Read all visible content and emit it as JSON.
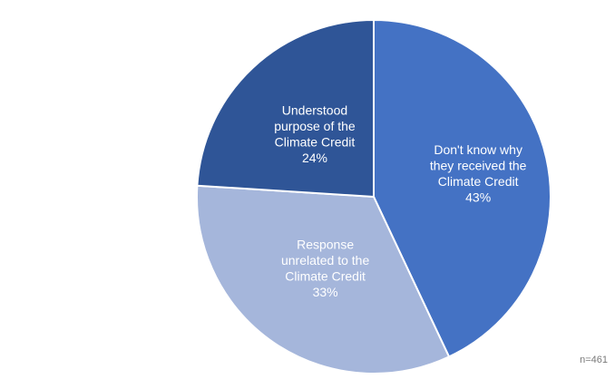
{
  "chart_data": {
    "type": "pie",
    "start_angle_deg": 0,
    "direction": "clockwise",
    "slices": [
      {
        "label_lines": [
          "Don't know why",
          "they received the",
          "Climate Credit"
        ],
        "value": 43,
        "value_label": "43%",
        "color": "#4472c4"
      },
      {
        "label_lines": [
          "Response",
          "unrelated to the",
          "Climate Credit"
        ],
        "value": 33,
        "value_label": "33%",
        "color": "#a5b6db"
      },
      {
        "label_lines": [
          "Understood",
          "purpose of the",
          "Climate Credit"
        ],
        "value": 24,
        "value_label": "24%",
        "color": "#2f5597"
      }
    ],
    "slice_border_color": "#ffffff",
    "legend": "none",
    "note": "n=461"
  }
}
